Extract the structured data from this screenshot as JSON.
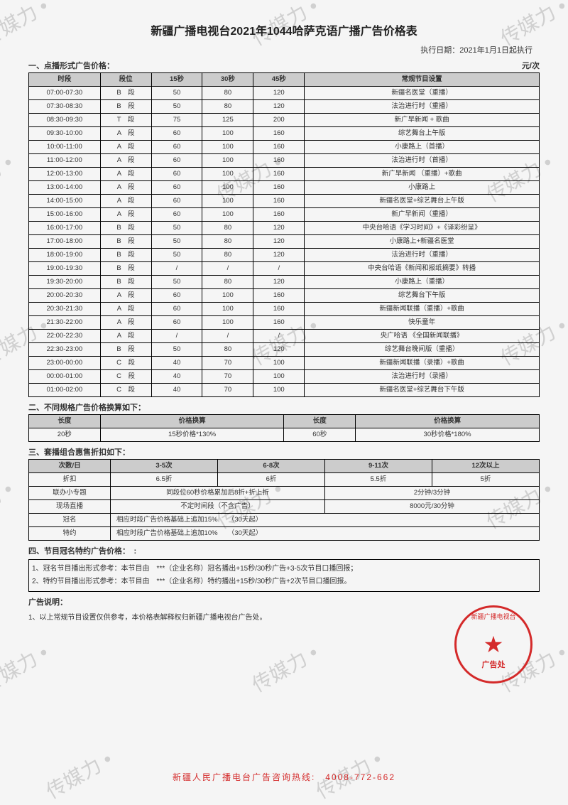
{
  "title": "新疆广播电视台2021年1044哈萨克语广播广告价格表",
  "exec_date": "执行日期：2021年1月1日起执行",
  "section1": {
    "heading": "一、点播形式广告价格：",
    "unit": "元/次",
    "columns": [
      "时段",
      "段位",
      "15秒",
      "30秒",
      "45秒",
      "常规节目设置"
    ],
    "rows": [
      [
        "07:00-07:30",
        "B　段",
        "50",
        "80",
        "120",
        "新疆名医堂（重播）"
      ],
      [
        "07:30-08:30",
        "B　段",
        "50",
        "80",
        "120",
        "法治进行时（重播）"
      ],
      [
        "08:30-09:30",
        "T　段",
        "75",
        "125",
        "200",
        "新广早新闻 + 歌曲"
      ],
      [
        "09:30-10:00",
        "A　段",
        "60",
        "100",
        "160",
        "综艺舞台上午版"
      ],
      [
        "10:00-11:00",
        "A　段",
        "60",
        "100",
        "160",
        "小康路上（首播）"
      ],
      [
        "11:00-12:00",
        "A　段",
        "60",
        "100",
        "160",
        "法治进行时（首播）"
      ],
      [
        "12:00-13:00",
        "A　段",
        "60",
        "100",
        "160",
        "新广早新闻 （重播）+歌曲"
      ],
      [
        "13:00-14:00",
        "A　段",
        "60",
        "100",
        "160",
        "小康路上"
      ],
      [
        "14:00-15:00",
        "A　段",
        "60",
        "100",
        "160",
        "新疆名医堂+综艺舞台上午版"
      ],
      [
        "15:00-16:00",
        "A　段",
        "60",
        "100",
        "160",
        "新广早新闻（重播）"
      ],
      [
        "16:00-17:00",
        "B　段",
        "50",
        "80",
        "120",
        "中央台哈语《学习时间》+《译彩纷呈》"
      ],
      [
        "17:00-18:00",
        "B　段",
        "50",
        "80",
        "120",
        "小康路上+新疆名医堂"
      ],
      [
        "18:00-19:00",
        "B　段",
        "50",
        "80",
        "120",
        "法治进行时（重播）"
      ],
      [
        "19:00-19:30",
        "B　段",
        "/",
        "/",
        "/",
        "中央台哈语《新闻和报纸摘要》转播"
      ],
      [
        "19:30-20:00",
        "B　段",
        "50",
        "80",
        "120",
        "小康路上（重播）"
      ],
      [
        "20:00-20:30",
        "A　段",
        "60",
        "100",
        "160",
        "综艺舞台下午版"
      ],
      [
        "20:30-21:30",
        "A　段",
        "60",
        "100",
        "160",
        "新疆新闻联播（重播）+歌曲"
      ],
      [
        "21:30-22:00",
        "A　段",
        "60",
        "100",
        "160",
        "快乐童年"
      ],
      [
        "22:00-22:30",
        "A　段",
        "/",
        "/",
        "/",
        "央广哈语 《全国新闻联播》"
      ],
      [
        "22:30-23:00",
        "B　段",
        "50",
        "80",
        "120",
        "综艺舞台晚间版（重播）"
      ],
      [
        "23:00-00:00",
        "C　段",
        "40",
        "70",
        "100",
        "新疆新闻联播（录播）+歌曲"
      ],
      [
        "00:00-01:00",
        "C　段",
        "40",
        "70",
        "100",
        "法治进行时（录播）"
      ],
      [
        "01:00-02:00",
        "C　段",
        "40",
        "70",
        "100",
        "新疆名医堂+综艺舞台下午版"
      ]
    ]
  },
  "section2": {
    "heading": "二、不同规格广告价格换算如下：",
    "columns": [
      "长度",
      "价格换算",
      "长度",
      "价格换算"
    ],
    "rows": [
      [
        "20秒",
        "15秒价格*130%",
        "60秒",
        "30秒价格*180%"
      ]
    ]
  },
  "section3": {
    "heading": "三、套播组合惠售折扣如下：",
    "columns": [
      "次数/日",
      "3-5次",
      "6-8次",
      "9-11次",
      "12次以上"
    ],
    "discount_row": [
      "折扣",
      "6.5折",
      "6折",
      "5.5折",
      "5折"
    ],
    "extra_rows": [
      {
        "label": "联办小专题",
        "c1": "同段位60秒价格累加后8折+折上折",
        "c2": "2分钟/3分钟"
      },
      {
        "label": "现场直播",
        "c1": "不定时间段（不含广告）",
        "c2": "8000元/30分钟"
      },
      {
        "label": "冠名",
        "c1": "相应时段广告价格基础上追加15%　　（30天起）",
        "c2": ""
      },
      {
        "label": "特约",
        "c1": "相应时段广告价格基础上追加10%　　（30天起）",
        "c2": ""
      }
    ]
  },
  "section4": {
    "heading": "四、节目冠名特约广告价格：　:",
    "note1": "1、冠名节目播出形式参考：本节目由　***（企业名称）冠名播出+15秒/30秒广告+3-5次节目口播回报；",
    "note2": "2、特约节目播出形式参考：本节目由　***（企业名称）特约播出+15秒/30秒广告+2次节目口播回报。"
  },
  "notice": {
    "heading": "广告说明：",
    "text": "1、以上常规节目设置仅供参考，本价格表解释权归新疆广播电视台广告处。"
  },
  "stamp": {
    "top": "新疆广播电视台",
    "bottom": "广告处"
  },
  "footer": "新疆人民广播电台广告咨询热线:　4008-772-662",
  "watermark_text": "传媒力 •"
}
